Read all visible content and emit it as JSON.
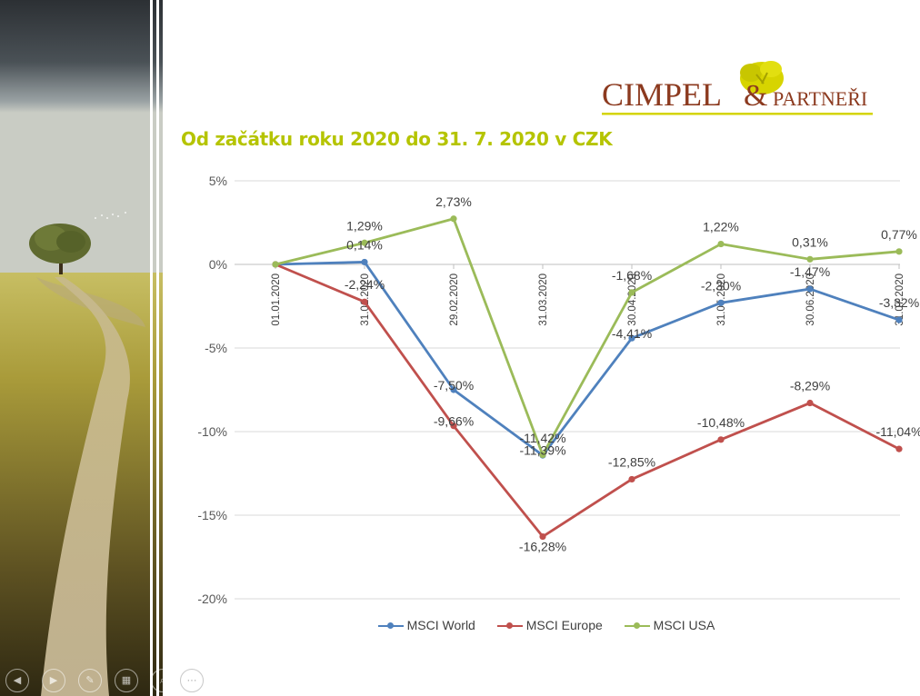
{
  "slide": {
    "title": "Od začátku roku 2020 do 31. 7. 2020 v CZK"
  },
  "logo": {
    "word1": "CIMPEL",
    "amp": "&",
    "word2": "PARTNEŘI",
    "color_text": "#8c3a1f",
    "color_accent": "#d4d400"
  },
  "toolbar": {
    "more_label": "···",
    "icons": [
      "arrow-left-icon",
      "arrow-right-icon",
      "pen-icon",
      "slides-icon",
      "zoom-icon",
      "more-options-icon"
    ]
  },
  "chart_data": {
    "type": "line",
    "title": "",
    "xlabel": "",
    "ylabel": "",
    "x": [
      "01.01.2020",
      "31.01.2020",
      "29.02.2020",
      "31.03.2020",
      "30.04.2020",
      "31.05.2020",
      "30.06.2020",
      "31.07.2020"
    ],
    "y_ticks": [
      5,
      0,
      -5,
      -10,
      -15,
      -20
    ],
    "y_tick_labels": [
      "5%",
      "0%",
      "-5%",
      "-10%",
      "-15%",
      "-20%"
    ],
    "ylim": [
      -20,
      5
    ],
    "grid": true,
    "legend_position": "bottom",
    "series": [
      {
        "name": "MSCI World",
        "color": "#4f81bd",
        "values": [
          0,
          0.14,
          -7.5,
          -11.42,
          -4.41,
          -2.3,
          -1.47,
          -3.32
        ],
        "labels": [
          "",
          "0,14%",
          "-7,50%",
          "-11,42%",
          "-4,41%",
          "-2,30%",
          "-1,47%",
          "-3,32%"
        ]
      },
      {
        "name": "MSCI Europe",
        "color": "#c0504d",
        "values": [
          0,
          -2.24,
          -9.66,
          -16.28,
          -12.85,
          -10.48,
          -8.29,
          -11.04
        ],
        "labels": [
          "",
          "-2,24%",
          "-9,66%",
          "-16,28%",
          "-12,85%",
          "-10,48%",
          "-8,29%",
          "-11,04%"
        ]
      },
      {
        "name": "MSCI USA",
        "color": "#9bbb59",
        "values": [
          0,
          1.29,
          2.73,
          -11.39,
          -1.68,
          1.22,
          0.31,
          0.77
        ],
        "labels": [
          "",
          "1,29%",
          "2,73%",
          "-11,39%",
          "-1,68%",
          "1,22%",
          "0,31%",
          "0,77%"
        ]
      }
    ]
  }
}
